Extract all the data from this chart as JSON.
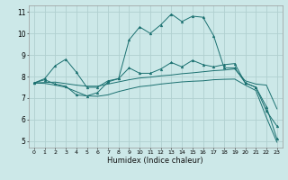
{
  "xlabel": "Humidex (Indice chaleur)",
  "bg_color": "#cce8e8",
  "line_color": "#1a7070",
  "grid_color": "#b0d0d0",
  "xlim": [
    -0.5,
    23.5
  ],
  "ylim": [
    4.7,
    11.3
  ],
  "xticks": [
    0,
    1,
    2,
    3,
    4,
    5,
    6,
    7,
    8,
    9,
    10,
    11,
    12,
    13,
    14,
    15,
    16,
    17,
    18,
    19,
    20,
    21,
    22,
    23
  ],
  "yticks": [
    5,
    6,
    7,
    8,
    9,
    10,
    11
  ],
  "line1_x": [
    0,
    1,
    2,
    3,
    4,
    5,
    6,
    7,
    8,
    9,
    10,
    11,
    12,
    13,
    14,
    15,
    16,
    17,
    18,
    19,
    20,
    21,
    22,
    23
  ],
  "line1_y": [
    7.7,
    7.9,
    8.5,
    8.8,
    8.2,
    7.5,
    7.5,
    7.8,
    7.9,
    9.7,
    10.3,
    10.0,
    10.4,
    10.9,
    10.55,
    10.8,
    10.75,
    9.9,
    8.4,
    8.4,
    7.7,
    7.5,
    6.4,
    5.7
  ],
  "line2_x": [
    0,
    1,
    2,
    3,
    4,
    5,
    6,
    7,
    8,
    9,
    10,
    11,
    12,
    13,
    14,
    15,
    16,
    17,
    18,
    19,
    20,
    21,
    22,
    23
  ],
  "line2_y": [
    7.7,
    7.85,
    7.65,
    7.55,
    7.15,
    7.1,
    7.25,
    7.75,
    7.9,
    8.4,
    8.15,
    8.15,
    8.35,
    8.65,
    8.45,
    8.75,
    8.55,
    8.45,
    8.55,
    8.6,
    7.7,
    7.5,
    6.6,
    5.1
  ],
  "line3_x": [
    0,
    1,
    2,
    3,
    4,
    5,
    6,
    7,
    8,
    9,
    10,
    11,
    12,
    13,
    14,
    15,
    16,
    17,
    18,
    19,
    20,
    21,
    22,
    23
  ],
  "line3_y": [
    7.7,
    7.72,
    7.74,
    7.67,
    7.6,
    7.55,
    7.55,
    7.65,
    7.75,
    7.85,
    7.93,
    7.97,
    8.03,
    8.07,
    8.13,
    8.17,
    8.22,
    8.27,
    8.3,
    8.35,
    7.8,
    7.65,
    7.6,
    6.5
  ],
  "line4_x": [
    0,
    1,
    2,
    3,
    4,
    5,
    6,
    7,
    8,
    9,
    10,
    11,
    12,
    13,
    14,
    15,
    16,
    17,
    18,
    19,
    20,
    21,
    22,
    23
  ],
  "line4_y": [
    7.7,
    7.68,
    7.6,
    7.5,
    7.3,
    7.1,
    7.08,
    7.15,
    7.3,
    7.42,
    7.53,
    7.58,
    7.65,
    7.7,
    7.75,
    7.78,
    7.8,
    7.85,
    7.87,
    7.88,
    7.6,
    7.35,
    6.1,
    4.95
  ]
}
